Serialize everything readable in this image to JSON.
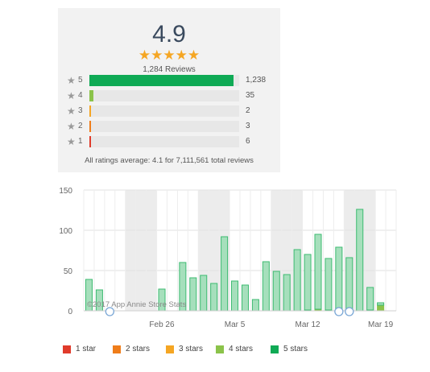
{
  "summary": {
    "average": "4.9",
    "stars": "★★★★★",
    "reviews": "1,284 Reviews",
    "rows": [
      {
        "star": "★",
        "label": "5",
        "count": "1,238",
        "fraction": 0.964,
        "color": "#0faa55"
      },
      {
        "star": "★",
        "label": "4",
        "count": "35",
        "fraction": 0.027,
        "color": "#8bc34a"
      },
      {
        "star": "★",
        "label": "3",
        "count": "2",
        "fraction": 0.0016,
        "color": "#f5a623"
      },
      {
        "star": "★",
        "label": "2",
        "count": "3",
        "fraction": 0.0023,
        "color": "#ef7d1a"
      },
      {
        "star": "★",
        "label": "1",
        "count": "6",
        "fraction": 0.005,
        "color": "#e03b2b"
      }
    ],
    "footer": "All ratings average: 4.1 for 7,111,561 total reviews"
  },
  "chart_data": {
    "type": "bar",
    "stacked": true,
    "ylim": [
      0,
      150
    ],
    "yticks": [
      0,
      50,
      100,
      150
    ],
    "xtick_labels": [
      {
        "label": "Feb 26",
        "day": 7
      },
      {
        "label": "Mar 5",
        "day": 14
      },
      {
        "label": "Mar 12",
        "day": 21
      },
      {
        "label": "Mar 19",
        "day": 28
      }
    ],
    "days": [
      "Feb 19",
      "Feb 20",
      "Feb 21",
      "Feb 22",
      "Feb 23",
      "Feb 24",
      "Feb 25",
      "Feb 26",
      "Feb 27",
      "Feb 28",
      "Mar 1",
      "Mar 2",
      "Mar 3",
      "Mar 4",
      "Mar 5",
      "Mar 6",
      "Mar 7",
      "Mar 8",
      "Mar 9",
      "Mar 10",
      "Mar 11",
      "Mar 12",
      "Mar 13",
      "Mar 14",
      "Mar 15",
      "Mar 16",
      "Mar 17",
      "Mar 18",
      "Mar 19",
      "Mar 20"
    ],
    "series": [
      {
        "name": "1 star",
        "color": "#e03b2b",
        "values": [
          0,
          0,
          0,
          0,
          0,
          0,
          0,
          0,
          0,
          0,
          0,
          0,
          0,
          0,
          0,
          0,
          0,
          0,
          0,
          0,
          0,
          0,
          0,
          0,
          0,
          0,
          0,
          0,
          0,
          0
        ]
      },
      {
        "name": "2 stars",
        "color": "#ef7d1a",
        "values": [
          0,
          0,
          0,
          0,
          0,
          0,
          0,
          0,
          0,
          0,
          0,
          0,
          0,
          0,
          0,
          0,
          0,
          0,
          0,
          0,
          0,
          0,
          1,
          0,
          0,
          0,
          0,
          0,
          0,
          0
        ]
      },
      {
        "name": "3 stars",
        "color": "#f5a623",
        "values": [
          0,
          0,
          0,
          0,
          0,
          0,
          0,
          0,
          0,
          0,
          0,
          0,
          0,
          0,
          0,
          0,
          0,
          0,
          0,
          0,
          0,
          0,
          0,
          0,
          1,
          0,
          0,
          0,
          1,
          0
        ]
      },
      {
        "name": "4 stars",
        "color": "#8bc34a",
        "values": [
          0,
          0,
          0,
          0,
          0,
          0,
          0,
          0,
          0,
          0,
          0,
          0,
          0,
          0,
          0,
          0,
          0,
          0,
          0,
          0,
          0,
          1,
          1,
          1,
          2,
          0,
          0,
          1,
          6,
          0
        ]
      },
      {
        "name": "5 stars",
        "color": "#0faa55",
        "values": [
          39,
          26,
          0,
          0,
          0,
          0,
          0,
          27,
          0,
          60,
          41,
          44,
          34,
          92,
          37,
          32,
          14,
          61,
          49,
          45,
          76,
          69,
          93,
          64,
          76,
          66,
          126,
          28,
          3,
          0
        ]
      }
    ],
    "weekends": [
      [
        4,
        6
      ],
      [
        11,
        13
      ],
      [
        18,
        20
      ],
      [
        25,
        27
      ]
    ],
    "annotations": [
      {
        "day": 2
      },
      {
        "day": 24
      },
      {
        "day": 25
      }
    ],
    "watermark": "©2017 App Annie Store Stats",
    "legend": [
      {
        "name": "1 star",
        "color": "#e03b2b"
      },
      {
        "name": "2 stars",
        "color": "#ef7d1a"
      },
      {
        "name": "3 stars",
        "color": "#f5a623"
      },
      {
        "name": "4 stars",
        "color": "#8bc34a"
      },
      {
        "name": "5 stars",
        "color": "#0faa55"
      }
    ]
  }
}
